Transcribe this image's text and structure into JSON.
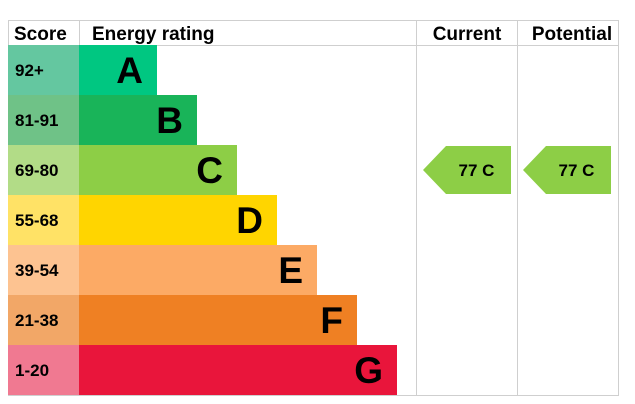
{
  "chart_data": {
    "type": "bar",
    "headers": {
      "score": "Score",
      "rating": "Energy rating",
      "current": "Current",
      "potential": "Potential"
    },
    "bands": [
      {
        "letter": "A",
        "range": "92+",
        "score_color": "#64c7a0",
        "bar_color": "#00c781"
      },
      {
        "letter": "B",
        "range": "81-91",
        "score_color": "#6fc287",
        "bar_color": "#19b459"
      },
      {
        "letter": "C",
        "range": "69-80",
        "score_color": "#b2dc87",
        "bar_color": "#8dce46"
      },
      {
        "letter": "D",
        "range": "55-68",
        "score_color": "#ffe266",
        "bar_color": "#ffd500"
      },
      {
        "letter": "E",
        "range": "39-54",
        "score_color": "#fdc391",
        "bar_color": "#fcaa65"
      },
      {
        "letter": "F",
        "range": "21-38",
        "score_color": "#f2a767",
        "bar_color": "#ef8023"
      },
      {
        "letter": "G",
        "range": "1-20",
        "score_color": "#f07991",
        "bar_color": "#e9153b"
      }
    ],
    "current": {
      "value": 77,
      "band": "C",
      "label": "77  C",
      "color": "#8dce46"
    },
    "potential": {
      "value": 77,
      "band": "C",
      "label": "77  C",
      "color": "#8dce46"
    }
  }
}
